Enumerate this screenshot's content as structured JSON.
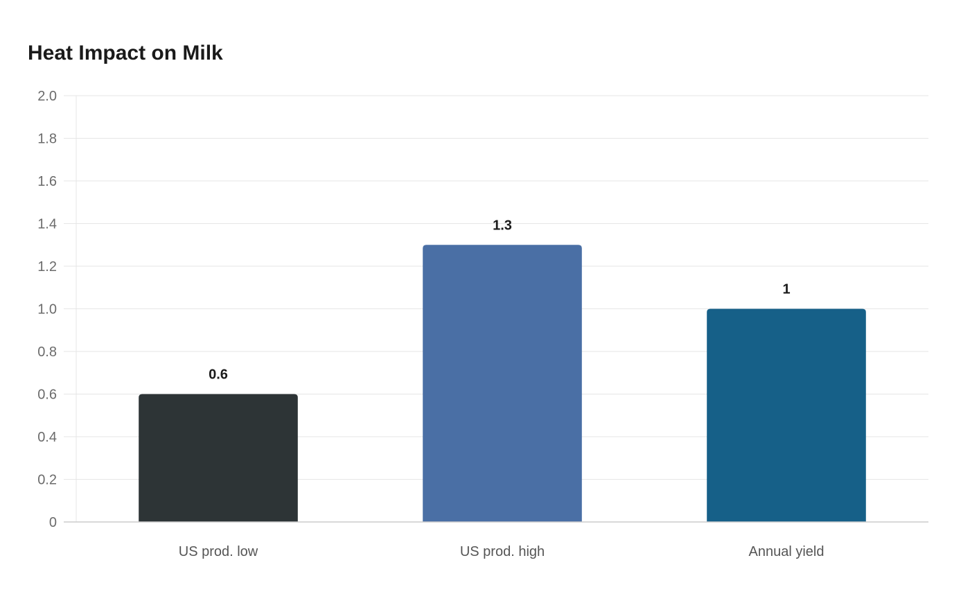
{
  "chart_data": {
    "type": "bar",
    "title": "Heat Impact on Milk",
    "categories": [
      "US prod. low",
      "US prod. high",
      "Annual yield"
    ],
    "values": [
      0.6,
      1.3,
      1
    ],
    "value_labels": [
      "0.6",
      "1.3",
      "1"
    ],
    "bar_colors": [
      "#2d3436",
      "#4a6fa5",
      "#166088"
    ],
    "ylim": [
      0,
      2.0
    ],
    "y_ticks": [
      "0",
      "0.2",
      "0.4",
      "0.6",
      "0.8",
      "1.0",
      "1.2",
      "1.4",
      "1.6",
      "1.8",
      "2.0"
    ],
    "xlabel": "",
    "ylabel": "",
    "grid": true,
    "legend": "none"
  }
}
